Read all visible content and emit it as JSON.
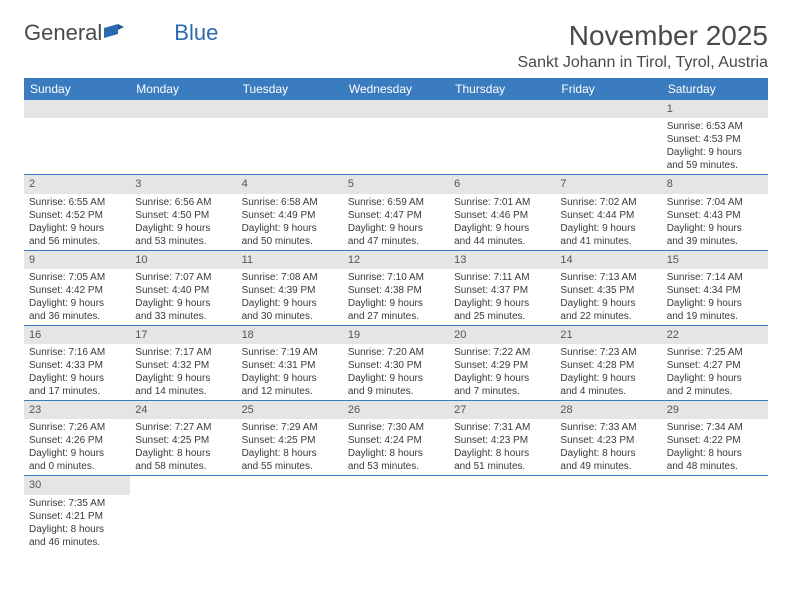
{
  "logo": {
    "text1": "General",
    "text2": "Blue"
  },
  "header": {
    "month": "November 2025",
    "location": "Sankt Johann in Tirol, Tyrol, Austria"
  },
  "weekdays": [
    "Sunday",
    "Monday",
    "Tuesday",
    "Wednesday",
    "Thursday",
    "Friday",
    "Saturday"
  ],
  "colors": {
    "header_bg": "#3b7bbf",
    "header_text": "#ffffff",
    "daynum_bg": "#e5e5e5",
    "border": "#3b7bbf",
    "text": "#3a3a3a",
    "logo_gray": "#4a4a4a",
    "logo_blue": "#2a6ab0"
  },
  "weeks": [
    [
      null,
      null,
      null,
      null,
      null,
      null,
      {
        "n": "1",
        "sunrise": "Sunrise: 6:53 AM",
        "sunset": "Sunset: 4:53 PM",
        "d1": "Daylight: 9 hours",
        "d2": "and 59 minutes."
      }
    ],
    [
      {
        "n": "2",
        "sunrise": "Sunrise: 6:55 AM",
        "sunset": "Sunset: 4:52 PM",
        "d1": "Daylight: 9 hours",
        "d2": "and 56 minutes."
      },
      {
        "n": "3",
        "sunrise": "Sunrise: 6:56 AM",
        "sunset": "Sunset: 4:50 PM",
        "d1": "Daylight: 9 hours",
        "d2": "and 53 minutes."
      },
      {
        "n": "4",
        "sunrise": "Sunrise: 6:58 AM",
        "sunset": "Sunset: 4:49 PM",
        "d1": "Daylight: 9 hours",
        "d2": "and 50 minutes."
      },
      {
        "n": "5",
        "sunrise": "Sunrise: 6:59 AM",
        "sunset": "Sunset: 4:47 PM",
        "d1": "Daylight: 9 hours",
        "d2": "and 47 minutes."
      },
      {
        "n": "6",
        "sunrise": "Sunrise: 7:01 AM",
        "sunset": "Sunset: 4:46 PM",
        "d1": "Daylight: 9 hours",
        "d2": "and 44 minutes."
      },
      {
        "n": "7",
        "sunrise": "Sunrise: 7:02 AM",
        "sunset": "Sunset: 4:44 PM",
        "d1": "Daylight: 9 hours",
        "d2": "and 41 minutes."
      },
      {
        "n": "8",
        "sunrise": "Sunrise: 7:04 AM",
        "sunset": "Sunset: 4:43 PM",
        "d1": "Daylight: 9 hours",
        "d2": "and 39 minutes."
      }
    ],
    [
      {
        "n": "9",
        "sunrise": "Sunrise: 7:05 AM",
        "sunset": "Sunset: 4:42 PM",
        "d1": "Daylight: 9 hours",
        "d2": "and 36 minutes."
      },
      {
        "n": "10",
        "sunrise": "Sunrise: 7:07 AM",
        "sunset": "Sunset: 4:40 PM",
        "d1": "Daylight: 9 hours",
        "d2": "and 33 minutes."
      },
      {
        "n": "11",
        "sunrise": "Sunrise: 7:08 AM",
        "sunset": "Sunset: 4:39 PM",
        "d1": "Daylight: 9 hours",
        "d2": "and 30 minutes."
      },
      {
        "n": "12",
        "sunrise": "Sunrise: 7:10 AM",
        "sunset": "Sunset: 4:38 PM",
        "d1": "Daylight: 9 hours",
        "d2": "and 27 minutes."
      },
      {
        "n": "13",
        "sunrise": "Sunrise: 7:11 AM",
        "sunset": "Sunset: 4:37 PM",
        "d1": "Daylight: 9 hours",
        "d2": "and 25 minutes."
      },
      {
        "n": "14",
        "sunrise": "Sunrise: 7:13 AM",
        "sunset": "Sunset: 4:35 PM",
        "d1": "Daylight: 9 hours",
        "d2": "and 22 minutes."
      },
      {
        "n": "15",
        "sunrise": "Sunrise: 7:14 AM",
        "sunset": "Sunset: 4:34 PM",
        "d1": "Daylight: 9 hours",
        "d2": "and 19 minutes."
      }
    ],
    [
      {
        "n": "16",
        "sunrise": "Sunrise: 7:16 AM",
        "sunset": "Sunset: 4:33 PM",
        "d1": "Daylight: 9 hours",
        "d2": "and 17 minutes."
      },
      {
        "n": "17",
        "sunrise": "Sunrise: 7:17 AM",
        "sunset": "Sunset: 4:32 PM",
        "d1": "Daylight: 9 hours",
        "d2": "and 14 minutes."
      },
      {
        "n": "18",
        "sunrise": "Sunrise: 7:19 AM",
        "sunset": "Sunset: 4:31 PM",
        "d1": "Daylight: 9 hours",
        "d2": "and 12 minutes."
      },
      {
        "n": "19",
        "sunrise": "Sunrise: 7:20 AM",
        "sunset": "Sunset: 4:30 PM",
        "d1": "Daylight: 9 hours",
        "d2": "and 9 minutes."
      },
      {
        "n": "20",
        "sunrise": "Sunrise: 7:22 AM",
        "sunset": "Sunset: 4:29 PM",
        "d1": "Daylight: 9 hours",
        "d2": "and 7 minutes."
      },
      {
        "n": "21",
        "sunrise": "Sunrise: 7:23 AM",
        "sunset": "Sunset: 4:28 PM",
        "d1": "Daylight: 9 hours",
        "d2": "and 4 minutes."
      },
      {
        "n": "22",
        "sunrise": "Sunrise: 7:25 AM",
        "sunset": "Sunset: 4:27 PM",
        "d1": "Daylight: 9 hours",
        "d2": "and 2 minutes."
      }
    ],
    [
      {
        "n": "23",
        "sunrise": "Sunrise: 7:26 AM",
        "sunset": "Sunset: 4:26 PM",
        "d1": "Daylight: 9 hours",
        "d2": "and 0 minutes."
      },
      {
        "n": "24",
        "sunrise": "Sunrise: 7:27 AM",
        "sunset": "Sunset: 4:25 PM",
        "d1": "Daylight: 8 hours",
        "d2": "and 58 minutes."
      },
      {
        "n": "25",
        "sunrise": "Sunrise: 7:29 AM",
        "sunset": "Sunset: 4:25 PM",
        "d1": "Daylight: 8 hours",
        "d2": "and 55 minutes."
      },
      {
        "n": "26",
        "sunrise": "Sunrise: 7:30 AM",
        "sunset": "Sunset: 4:24 PM",
        "d1": "Daylight: 8 hours",
        "d2": "and 53 minutes."
      },
      {
        "n": "27",
        "sunrise": "Sunrise: 7:31 AM",
        "sunset": "Sunset: 4:23 PM",
        "d1": "Daylight: 8 hours",
        "d2": "and 51 minutes."
      },
      {
        "n": "28",
        "sunrise": "Sunrise: 7:33 AM",
        "sunset": "Sunset: 4:23 PM",
        "d1": "Daylight: 8 hours",
        "d2": "and 49 minutes."
      },
      {
        "n": "29",
        "sunrise": "Sunrise: 7:34 AM",
        "sunset": "Sunset: 4:22 PM",
        "d1": "Daylight: 8 hours",
        "d2": "and 48 minutes."
      }
    ],
    [
      {
        "n": "30",
        "sunrise": "Sunrise: 7:35 AM",
        "sunset": "Sunset: 4:21 PM",
        "d1": "Daylight: 8 hours",
        "d2": "and 46 minutes."
      },
      null,
      null,
      null,
      null,
      null,
      null
    ]
  ]
}
